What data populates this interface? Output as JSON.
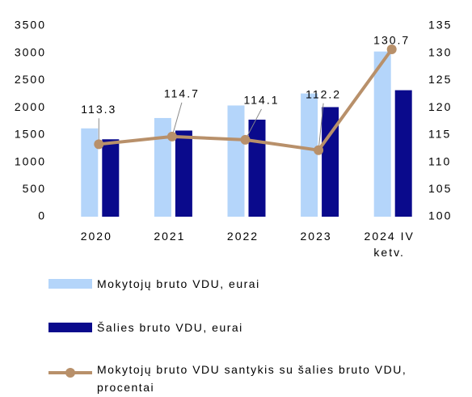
{
  "chart_data": {
    "type": "bar+line",
    "categories": [
      "2020",
      "2021",
      "2022",
      "2023",
      "2024 IV ketv."
    ],
    "series": [
      {
        "name": "Mokytojų bruto VDU, eurai",
        "type": "bar",
        "color": "#b4d5fa",
        "values": [
          1620,
          1810,
          2040,
          2260,
          3030
        ]
      },
      {
        "name": "Šalies bruto VDU, eurai",
        "type": "bar",
        "color": "#0a0a8c",
        "values": [
          1420,
          1580,
          1780,
          2010,
          2320
        ]
      },
      {
        "name": "Mokytojų bruto VDU santykis su šalies bruto VDU, procentai",
        "type": "line",
        "axis": "y2",
        "color": "#b8906a",
        "values": [
          113.3,
          114.7,
          114.1,
          112.2,
          130.7
        ]
      }
    ],
    "ylim": [
      0,
      3500
    ],
    "yticks": [
      0,
      500,
      1000,
      1500,
      2000,
      2500,
      3000,
      3500
    ],
    "y2lim": [
      100,
      135
    ],
    "y2ticks": [
      100,
      105,
      110,
      115,
      120,
      125,
      130,
      135
    ],
    "grid": false,
    "legend": "bottom"
  }
}
